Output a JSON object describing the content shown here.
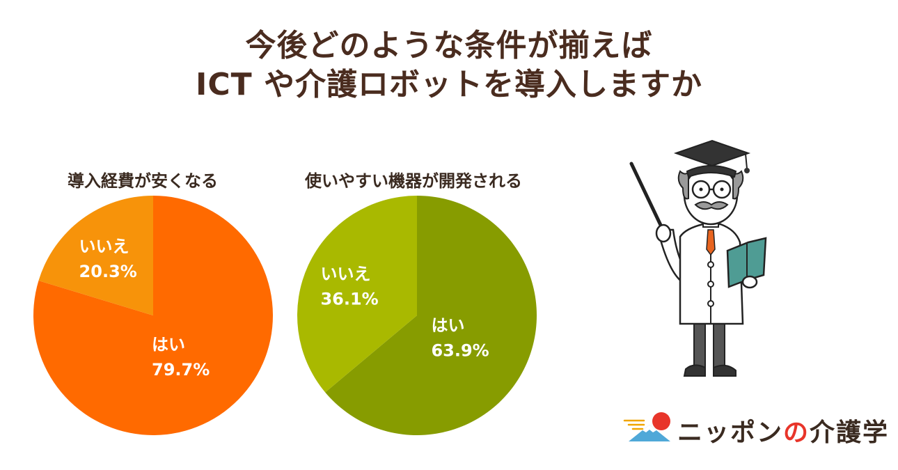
{
  "title": {
    "line1": "今後どのような条件が揃えば",
    "line2": "ICT や介護ロボットを導入しますか"
  },
  "chart_data": [
    {
      "type": "pie",
      "title": "導入経費が安くなる",
      "slices": [
        {
          "label": "はい",
          "value": 79.7,
          "display": "79.7%",
          "color": "#ff6a00"
        },
        {
          "label": "いいえ",
          "value": 20.3,
          "display": "20.3%",
          "color": "#f7930a"
        }
      ]
    },
    {
      "type": "pie",
      "title": "使いやすい機器が開発される",
      "slices": [
        {
          "label": "はい",
          "value": 63.9,
          "display": "63.9%",
          "color": "#879c00"
        },
        {
          "label": "いいえ",
          "value": 36.1,
          "display": "36.1%",
          "color": "#a9b900"
        }
      ]
    }
  ],
  "logo": {
    "text_pre": "ニッポン",
    "text_no": "の",
    "text_post": "介護学"
  }
}
